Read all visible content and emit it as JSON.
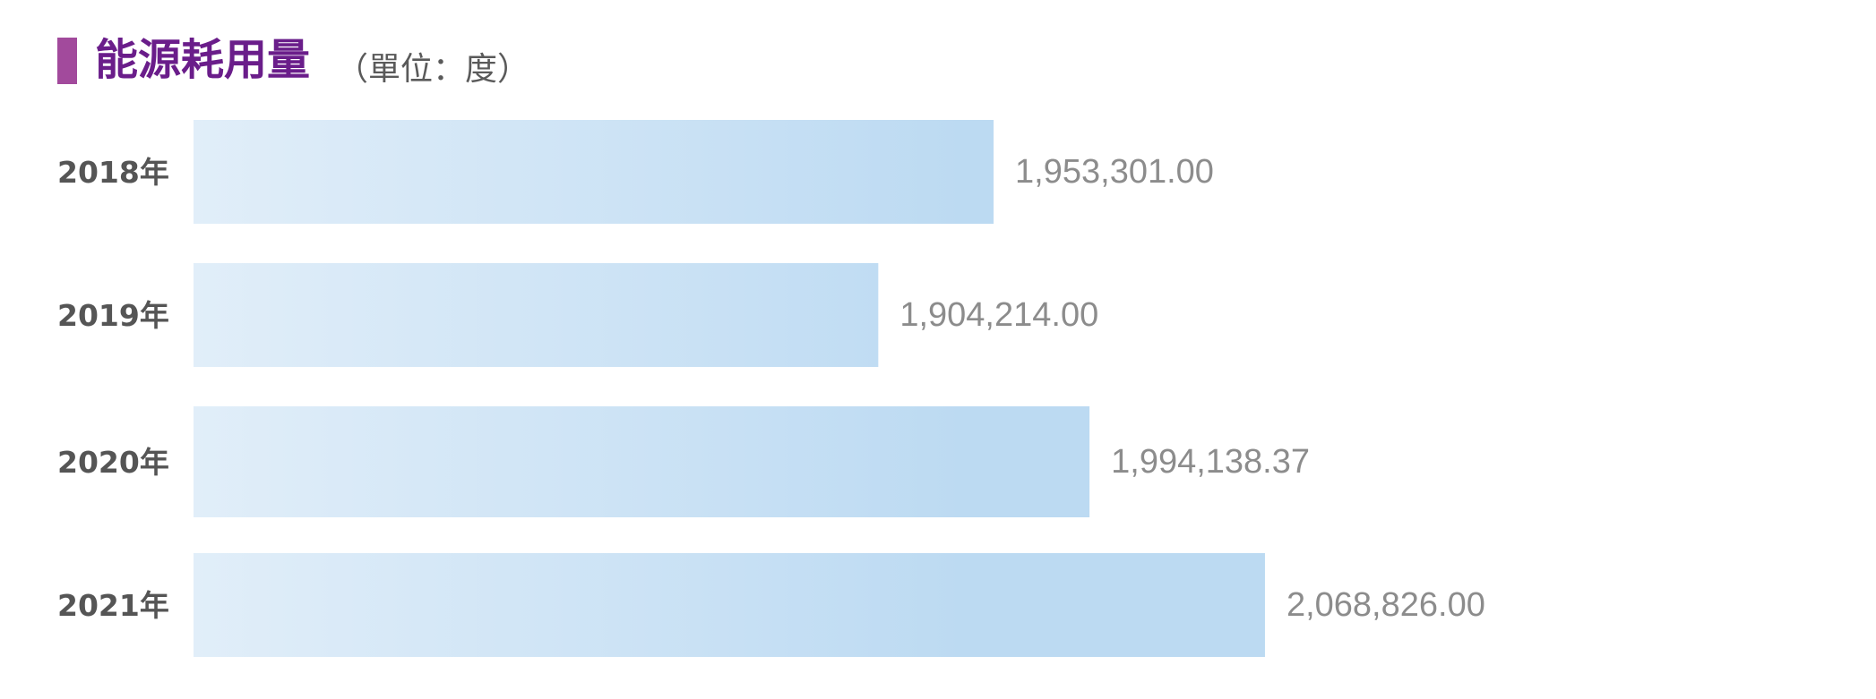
{
  "header": {
    "title": "能源耗用量",
    "subtitle": "（單位：度）",
    "accent_color": "#a24a9c",
    "title_color": "#6a1d8a"
  },
  "chart_data": {
    "type": "bar",
    "orientation": "horizontal",
    "title": "能源耗用量",
    "unit": "（單位：度）",
    "categories": [
      "2018年",
      "2019年",
      "2020年",
      "2021年"
    ],
    "values": [
      1953301.0,
      1904214.0,
      1994138.37,
      2068826.0
    ],
    "value_labels": [
      "1,953,301.00",
      "1,904,214.00",
      "1,994,138.37",
      "2,068,826.00"
    ],
    "grid": false,
    "legend": "none",
    "colors": {
      "bar_start": "#e1eef9",
      "bar_end": "#bcdaf2",
      "category_label": "#555555",
      "value_label": "#8c8c8c"
    }
  }
}
